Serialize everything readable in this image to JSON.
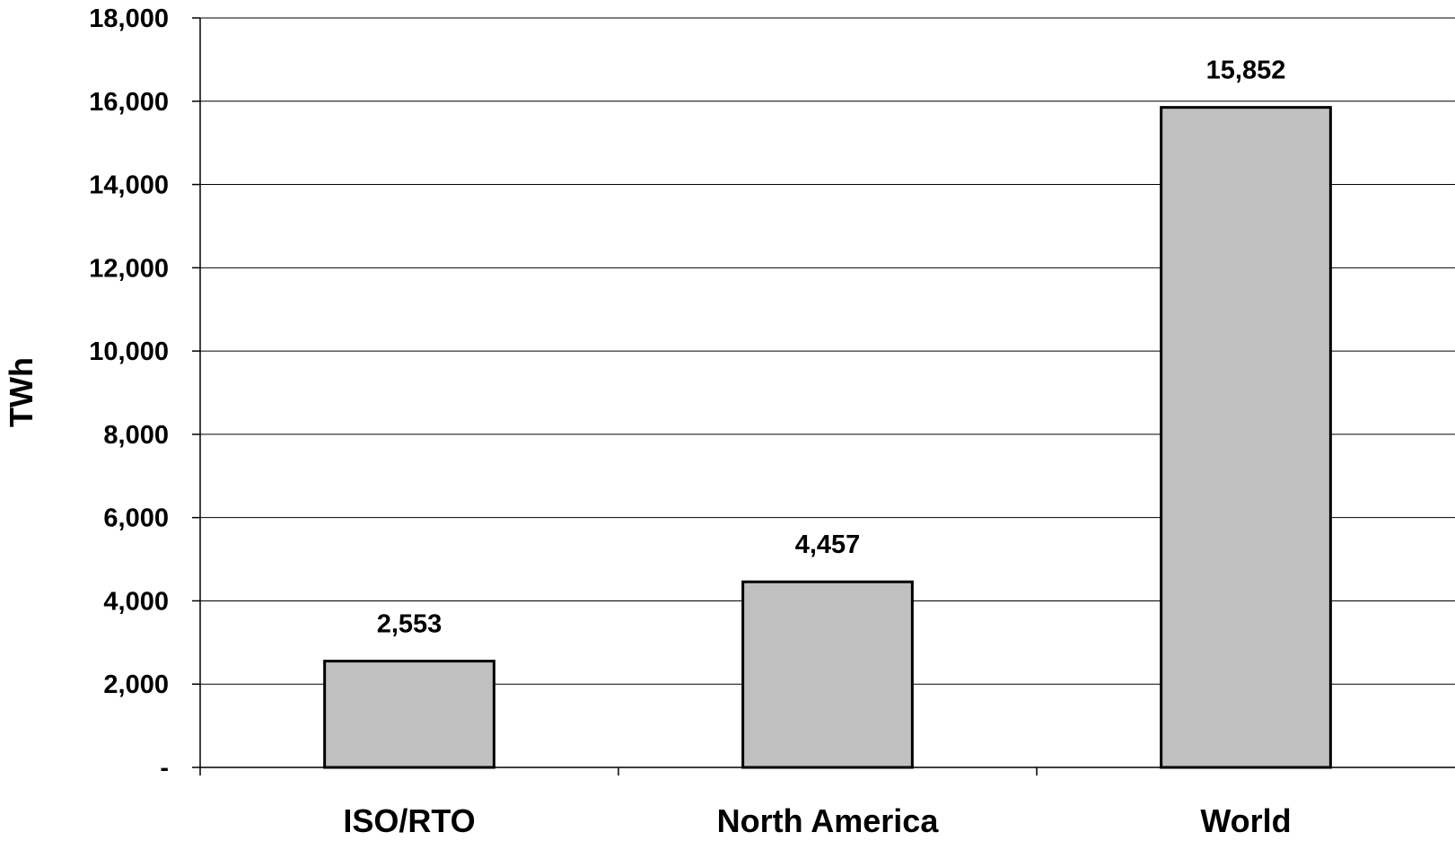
{
  "chart_data": {
    "type": "bar",
    "title": "",
    "xlabel": "",
    "ylabel": "TWh",
    "categories": [
      "ISO/RTO",
      "North America",
      "World"
    ],
    "values": [
      2553,
      4457,
      15852
    ],
    "data_labels": [
      "2,553",
      "4,457",
      "15,852"
    ],
    "ylim": [
      0,
      18000
    ],
    "yticks": [
      0,
      2000,
      4000,
      6000,
      8000,
      10000,
      12000,
      14000,
      16000,
      18000
    ],
    "ytick_labels": [
      "-",
      "2,000",
      "4,000",
      "6,000",
      "8,000",
      "10,000",
      "12,000",
      "14,000",
      "16,000",
      "18,000"
    ],
    "grid": true,
    "legend": "none",
    "colors": {
      "bar_fill": "#c0c0c0",
      "bar_stroke": "#000000",
      "grid": "#000000",
      "background": "#ffffff"
    }
  }
}
